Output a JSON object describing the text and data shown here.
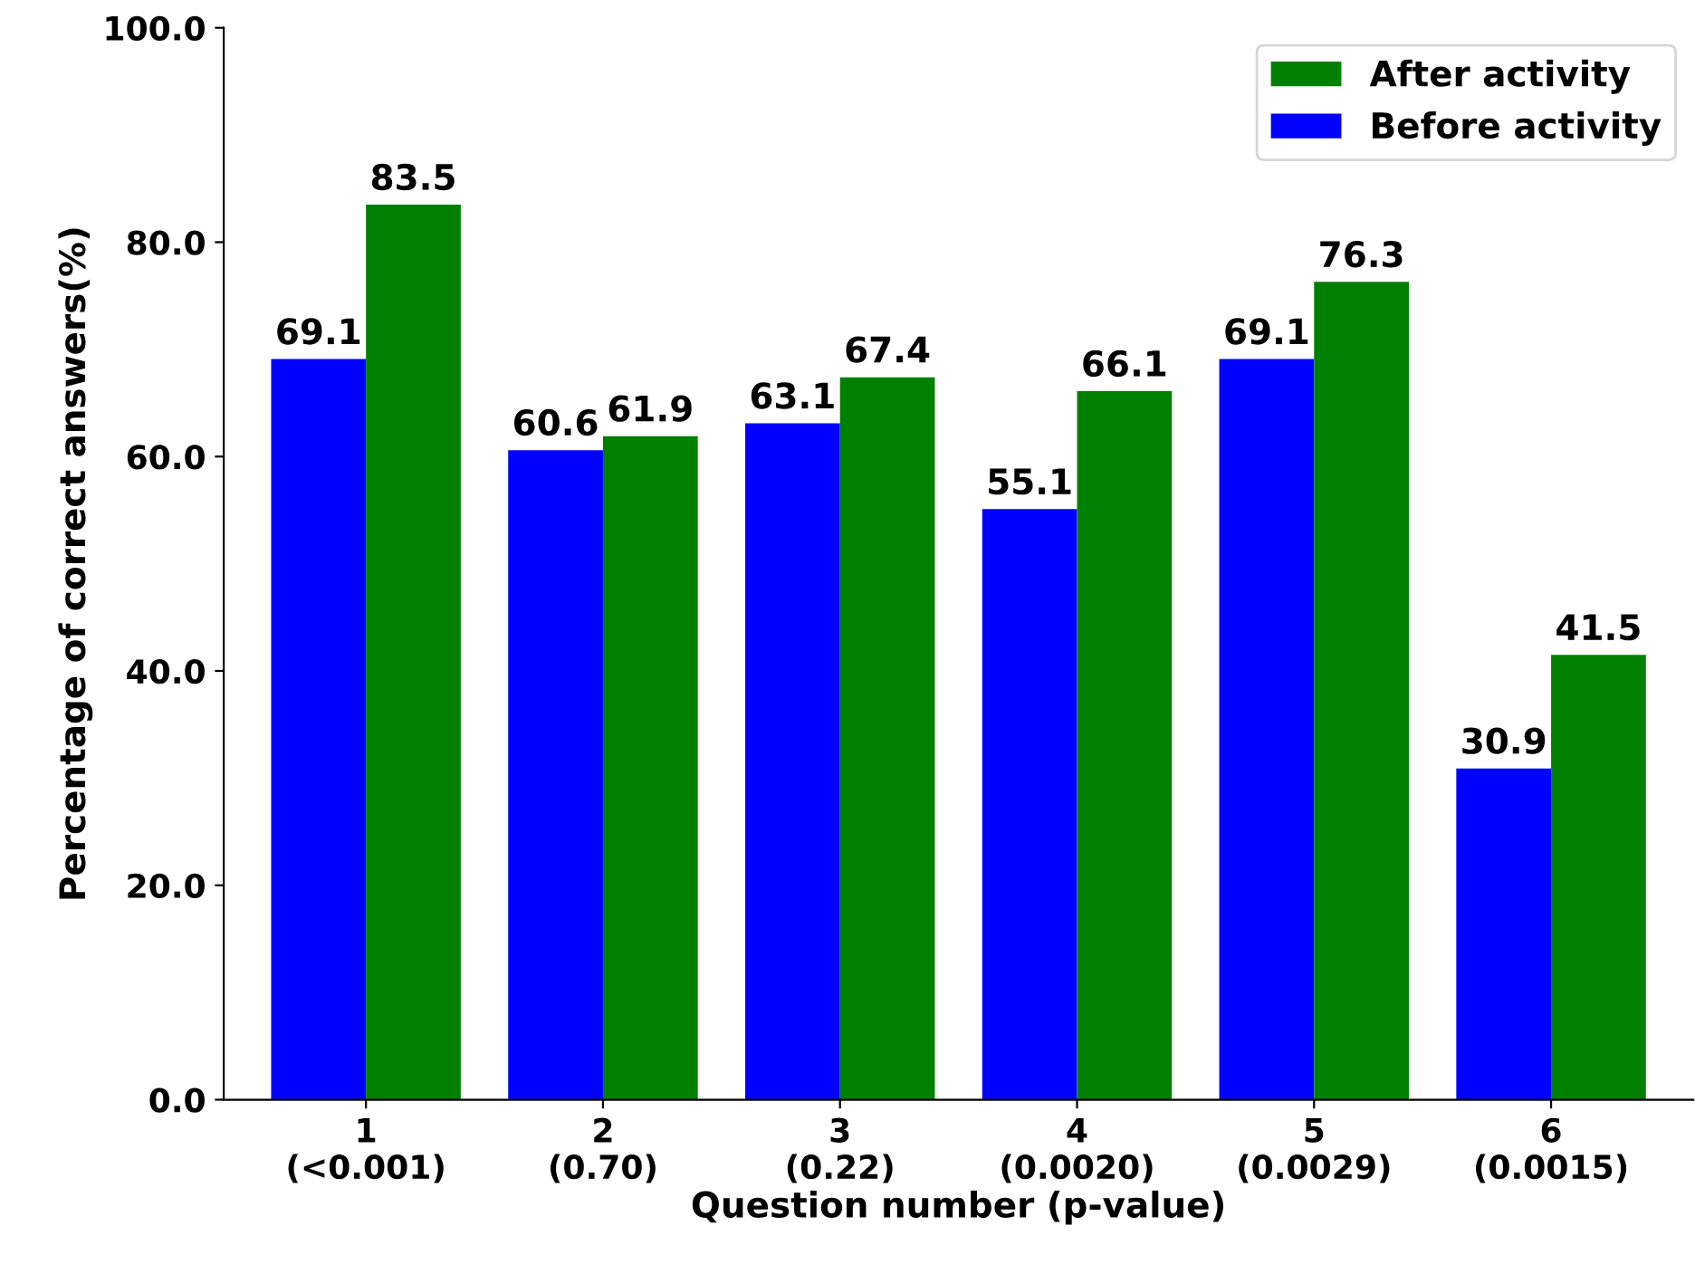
{
  "chart_data": {
    "type": "bar",
    "xlabel": "Question number (p-value)",
    "ylabel": "Percentage of correct answers(%)",
    "categories": [
      "1\n(<0.001)",
      "2\n(0.70)",
      "3\n(0.22)",
      "4\n(0.0020)",
      "5\n(0.0029)",
      "6\n(0.0015)"
    ],
    "series": [
      {
        "name": "Before activity",
        "color": "#0000ff",
        "values": [
          69.1,
          60.6,
          63.1,
          55.1,
          69.1,
          30.9
        ]
      },
      {
        "name": "After activity",
        "color": "#008000",
        "values": [
          83.5,
          61.9,
          67.4,
          66.1,
          76.3,
          41.5
        ]
      }
    ],
    "ylim": [
      0,
      100
    ],
    "yticks": [
      {
        "value": 0,
        "label": "0.0"
      },
      {
        "value": 20,
        "label": "20.0"
      },
      {
        "value": 40,
        "label": "40.0"
      },
      {
        "value": 60,
        "label": "60.0"
      },
      {
        "value": 80,
        "label": "80.0"
      },
      {
        "value": 100,
        "label": "100.0"
      }
    ],
    "data_labels": true,
    "legend": "top right",
    "grid": false
  }
}
